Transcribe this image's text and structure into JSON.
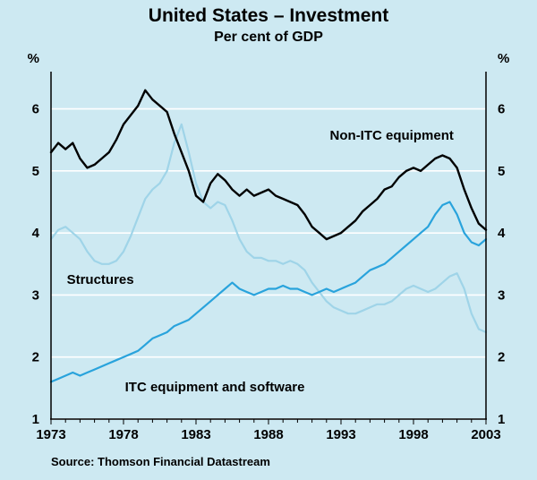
{
  "page": {
    "background": "#cde9f2"
  },
  "chart_data": {
    "type": "line",
    "title": "United States – Investment",
    "subtitle": "Per cent of GDP",
    "unit_label": "%",
    "source": "Source: Thomson Financial Datastream",
    "xlim": [
      1973,
      2003
    ],
    "ylim": [
      1,
      6.6
    ],
    "grid": "horizontal-white-gridlines",
    "legend_position": "in-plot-annotations",
    "xticks": [
      1973,
      1978,
      1983,
      1988,
      1993,
      1998,
      2003
    ],
    "yticks": [
      1,
      2,
      3,
      4,
      5,
      6
    ],
    "x": [
      1973,
      1973.5,
      1974,
      1974.5,
      1975,
      1975.5,
      1976,
      1976.5,
      1977,
      1977.5,
      1978,
      1978.5,
      1979,
      1979.5,
      1980,
      1980.5,
      1981,
      1981.5,
      1982,
      1982.5,
      1983,
      1983.5,
      1984,
      1984.5,
      1985,
      1985.5,
      1986,
      1986.5,
      1987,
      1987.5,
      1988,
      1988.5,
      1989,
      1989.5,
      1990,
      1990.5,
      1991,
      1991.5,
      1992,
      1992.5,
      1993,
      1993.5,
      1994,
      1994.5,
      1995,
      1995.5,
      1996,
      1996.5,
      1997,
      1997.5,
      1998,
      1998.5,
      1999,
      1999.5,
      2000,
      2000.5,
      2001,
      2001.5,
      2002,
      2002.5,
      2003
    ],
    "series": [
      {
        "name": "Non-ITC equipment",
        "color": "#000000",
        "values": [
          5.3,
          5.45,
          5.35,
          5.45,
          5.2,
          5.05,
          5.1,
          5.2,
          5.3,
          5.5,
          5.75,
          5.9,
          6.05,
          6.3,
          6.15,
          6.05,
          5.95,
          5.6,
          5.3,
          5.0,
          4.6,
          4.5,
          4.8,
          4.95,
          4.85,
          4.7,
          4.6,
          4.7,
          4.6,
          4.65,
          4.7,
          4.6,
          4.55,
          4.5,
          4.45,
          4.3,
          4.1,
          4.0,
          3.9,
          3.95,
          4.0,
          4.1,
          4.2,
          4.35,
          4.45,
          4.55,
          4.7,
          4.75,
          4.9,
          5.0,
          5.05,
          5.0,
          5.1,
          5.2,
          5.25,
          5.2,
          5.05,
          4.7,
          4.4,
          4.15,
          4.05
        ]
      },
      {
        "name": "Structures",
        "color": "#9fd4e8",
        "values": [
          3.9,
          4.05,
          4.1,
          4.0,
          3.9,
          3.7,
          3.55,
          3.5,
          3.5,
          3.55,
          3.7,
          3.95,
          4.25,
          4.55,
          4.7,
          4.8,
          5.0,
          5.45,
          5.75,
          5.3,
          4.8,
          4.5,
          4.4,
          4.5,
          4.45,
          4.2,
          3.9,
          3.7,
          3.6,
          3.6,
          3.55,
          3.55,
          3.5,
          3.55,
          3.5,
          3.4,
          3.2,
          3.05,
          2.9,
          2.8,
          2.75,
          2.7,
          2.7,
          2.75,
          2.8,
          2.85,
          2.85,
          2.9,
          3.0,
          3.1,
          3.15,
          3.1,
          3.05,
          3.1,
          3.2,
          3.3,
          3.35,
          3.1,
          2.7,
          2.45,
          2.4
        ]
      },
      {
        "name": "ITC equipment and software",
        "color": "#29a3dc",
        "values": [
          1.6,
          1.65,
          1.7,
          1.75,
          1.7,
          1.75,
          1.8,
          1.85,
          1.9,
          1.95,
          2.0,
          2.05,
          2.1,
          2.2,
          2.3,
          2.35,
          2.4,
          2.5,
          2.55,
          2.6,
          2.7,
          2.8,
          2.9,
          3.0,
          3.1,
          3.2,
          3.1,
          3.05,
          3.0,
          3.05,
          3.1,
          3.1,
          3.15,
          3.1,
          3.1,
          3.05,
          3.0,
          3.05,
          3.1,
          3.05,
          3.1,
          3.15,
          3.2,
          3.3,
          3.4,
          3.45,
          3.5,
          3.6,
          3.7,
          3.8,
          3.9,
          4.0,
          4.1,
          4.3,
          4.45,
          4.5,
          4.3,
          4.0,
          3.85,
          3.8,
          3.9
        ]
      }
    ],
    "annotations": [
      {
        "text": "Non-ITC equipment",
        "x": 1996.5,
        "y": 5.5
      },
      {
        "text": "Structures",
        "x": 1976.4,
        "y": 3.18
      },
      {
        "text": "ITC equipment and software",
        "x": 1984.3,
        "y": 1.45
      }
    ]
  }
}
